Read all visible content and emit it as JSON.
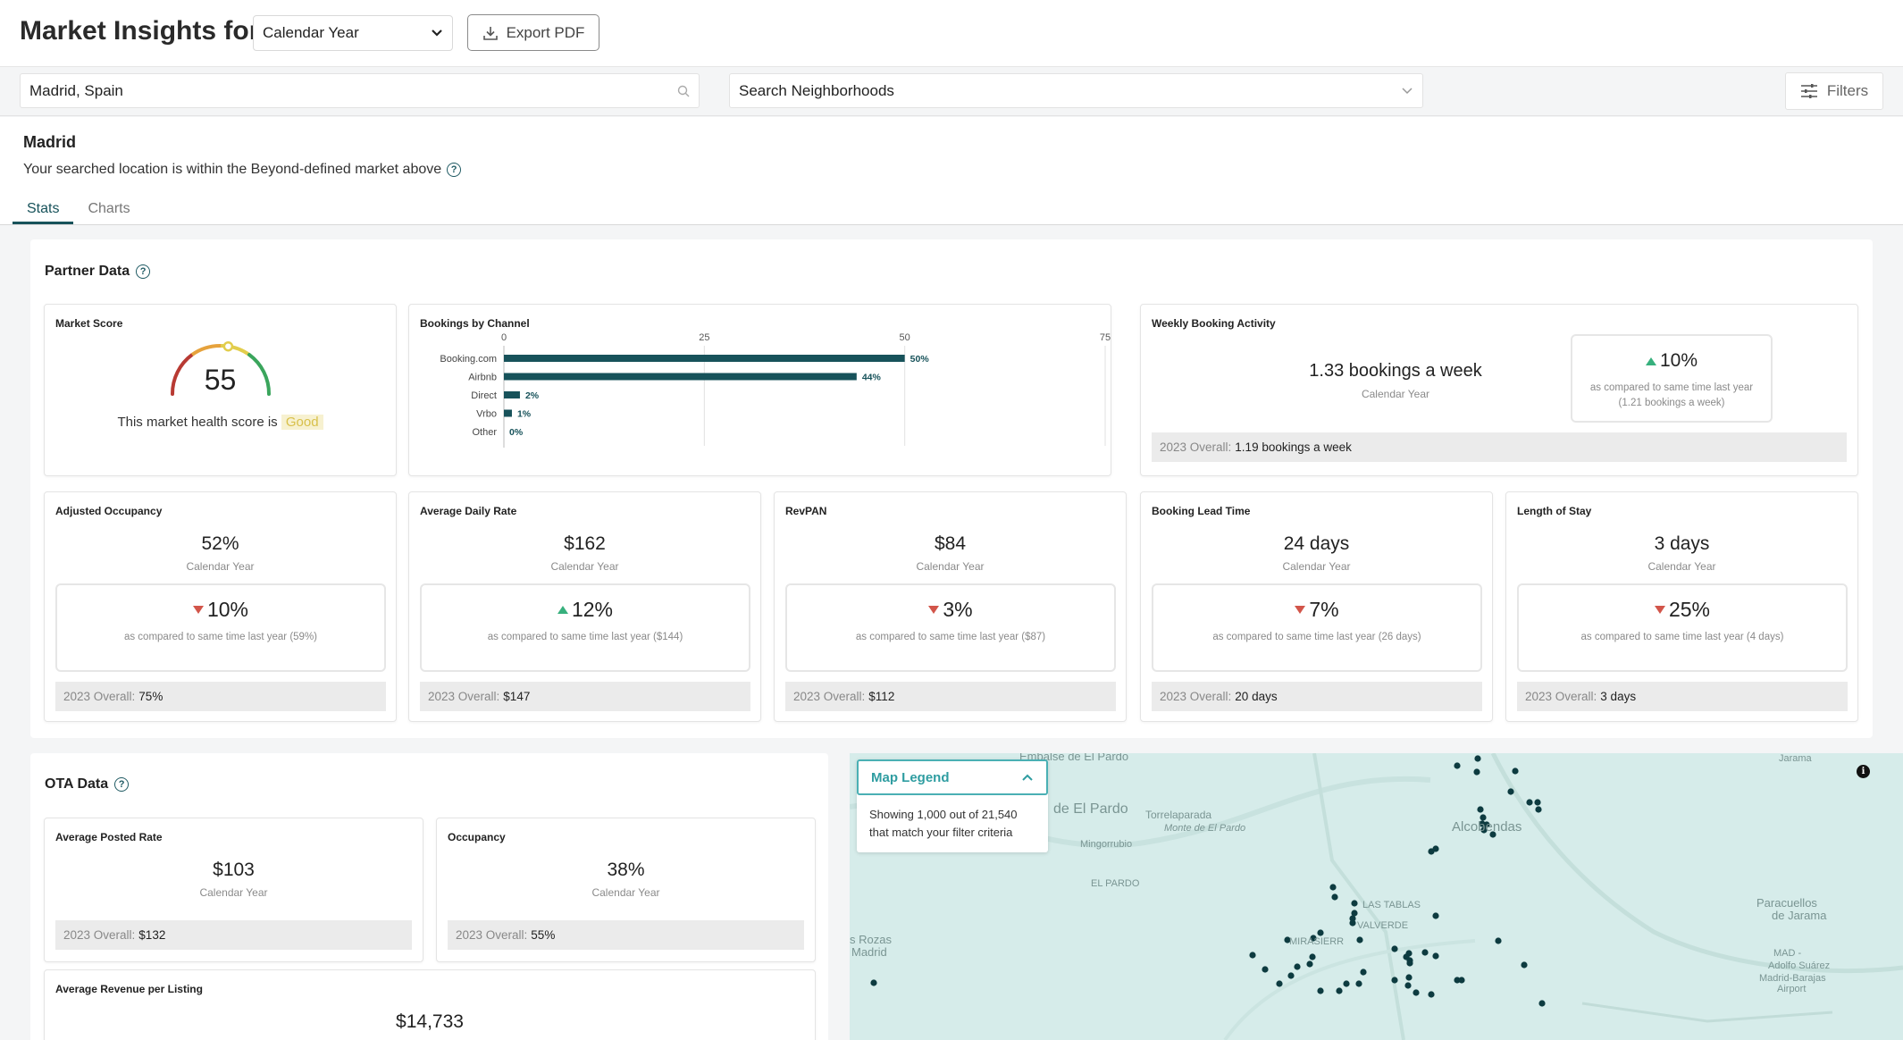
{
  "header": {
    "title": "Market Insights for",
    "period_select": "Calendar Year",
    "export_label": "Export PDF"
  },
  "search": {
    "location_value": "Madrid, Spain",
    "neighborhood_placeholder": "Search Neighborhoods",
    "filters_label": "Filters"
  },
  "market": {
    "name": "Madrid",
    "subtitle": "Your searched location is within the Beyond-defined market above"
  },
  "tabs": [
    {
      "label": "Stats",
      "active": true
    },
    {
      "label": "Charts",
      "active": false
    }
  ],
  "partner": {
    "section_title": "Partner Data",
    "market_score": {
      "title": "Market Score",
      "value": "55",
      "score": 55,
      "caption": "This market health score is",
      "rating": "Good"
    },
    "bookings_by_channel": {
      "title": "Bookings by Channel"
    },
    "weekly": {
      "title": "Weekly Booking Activity",
      "value": "1.33 bookings a week",
      "sub": "Calendar Year",
      "change": "10%",
      "direction": "up",
      "compare": "as compared to same time last year (1.21 bookings a week)",
      "overall_label": "2023 Overall:",
      "overall_value": "1.19 bookings a week"
    },
    "metrics": [
      {
        "title": "Adjusted Occupancy",
        "value": "52%",
        "sub": "Calendar Year",
        "change": "10%",
        "direction": "down",
        "compare": "as compared to same time last year (59%)",
        "overall_label": "2023 Overall:",
        "overall_value": "75%"
      },
      {
        "title": "Average Daily Rate",
        "value": "$162",
        "sub": "Calendar Year",
        "change": "12%",
        "direction": "up",
        "compare": "as compared to same time last year ($144)",
        "overall_label": "2023 Overall:",
        "overall_value": "$147"
      },
      {
        "title": "RevPAN",
        "value": "$84",
        "sub": "Calendar Year",
        "change": "3%",
        "direction": "down",
        "compare": "as compared to same time last year ($87)",
        "overall_label": "2023 Overall:",
        "overall_value": "$112"
      },
      {
        "title": "Booking Lead Time",
        "value": "24 days",
        "sub": "Calendar Year",
        "change": "7%",
        "direction": "down",
        "compare": "as compared to same time last year (26 days)",
        "overall_label": "2023 Overall:",
        "overall_value": "20 days"
      },
      {
        "title": "Length of Stay",
        "value": "3 days",
        "sub": "Calendar Year",
        "change": "25%",
        "direction": "down",
        "compare": "as compared to same time last year (4 days)",
        "overall_label": "2023 Overall:",
        "overall_value": "3 days"
      }
    ]
  },
  "ota": {
    "section_title": "OTA Data",
    "avg_posted_rate": {
      "title": "Average Posted Rate",
      "value": "$103",
      "sub": "Calendar Year",
      "overall_label": "2023 Overall:",
      "overall_value": "$132"
    },
    "occupancy": {
      "title": "Occupancy",
      "value": "38%",
      "sub": "Calendar Year",
      "overall_label": "2023 Overall:",
      "overall_value": "55%"
    },
    "avg_revenue": {
      "title": "Average Revenue per Listing",
      "value": "$14,733"
    }
  },
  "map": {
    "legend_title": "Map Legend",
    "legend_text": "Showing 1,000 out of 21,540 that match your filter criteria",
    "labels": [
      "Embalse de El Pardo",
      "de El Pardo",
      "Torrelaparada",
      "Monte de El Pardo",
      "Mingorrubio",
      "EL PARDO",
      "Alcobendas",
      "LAS TABLAS",
      "VALVERDE",
      "MIRASIERR",
      "s Rozas",
      "Madrid",
      "Paracuellos",
      "de Jarama",
      "MAD -",
      "Adolfo Suárez",
      "Madrid-Barajas",
      "Airport",
      "Jarama"
    ],
    "dot_color": "#0d3b40"
  },
  "chart_data": {
    "type": "bar",
    "orientation": "horizontal",
    "categories": [
      "Booking.com",
      "Airbnb",
      "Direct",
      "Vrbo",
      "Other"
    ],
    "values": [
      50,
      44,
      2,
      1,
      0
    ],
    "data_labels": [
      "50%",
      "44%",
      "2%",
      "1%",
      "0%"
    ],
    "xlim": [
      0,
      75
    ],
    "xticks": [
      0,
      25,
      50,
      75
    ],
    "grid": true,
    "bar_color": "#17525a"
  }
}
